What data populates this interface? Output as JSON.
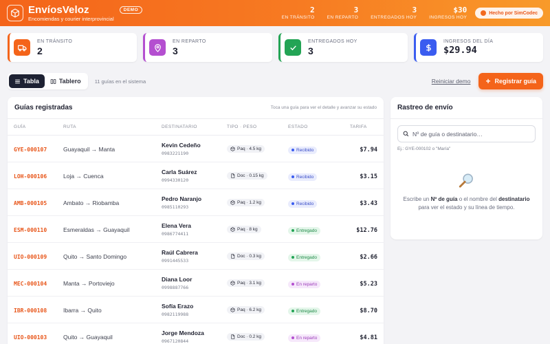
{
  "header": {
    "brand": "EnvíosVeloz",
    "subtitle": "Encomiendas y courier interprovincial",
    "badge": "DEMO",
    "stats": [
      {
        "value": "2",
        "label": "EN TRÁNSITO"
      },
      {
        "value": "3",
        "label": "EN REPARTO"
      },
      {
        "value": "3",
        "label": "ENTREGADOS HOY"
      },
      {
        "value": "$30",
        "label": "INGRESOS HOY"
      }
    ],
    "made_by": "Hecho por SimCodec"
  },
  "cards": [
    {
      "label": "EN TRÁNSITO",
      "value": "2",
      "color": "#f4641a",
      "icon": "truck-icon"
    },
    {
      "label": "EN REPARTO",
      "value": "3",
      "color": "#b44fd0",
      "icon": "map-pin-icon"
    },
    {
      "label": "ENTREGADOS HOY",
      "value": "3",
      "color": "#23a455",
      "icon": "check-icon"
    },
    {
      "label": "INGRESOS DEL DÍA",
      "value": "$29.94",
      "color": "#3a5cf0",
      "icon": "dollar-icon"
    }
  ],
  "toolbar": {
    "view_table": "Tabla",
    "view_board": "Tablero",
    "count_text": "11 guías en el sistema",
    "reset": "Reiniciar demo",
    "register": "Registrar guía"
  },
  "table": {
    "title": "Guías registradas",
    "hint": "Toca una guía para ver el detalle y avanzar su estado",
    "columns": [
      "GUÍA",
      "RUTA",
      "DESTINATARIO",
      "TIPO · PESO",
      "ESTADO",
      "TARIFA"
    ],
    "rows": [
      {
        "id": "GYE-000107",
        "route": "Guayaquil → Manta",
        "name": "Kevin Cedeño",
        "phone": "0983221190",
        "type": "Paq · 4.5 kg",
        "status": "Recibido",
        "fee": "$7.94"
      },
      {
        "id": "LOH-000106",
        "route": "Loja → Cuenca",
        "name": "Carla Suárez",
        "phone": "0994330120",
        "type": "Doc · 0.15 kg",
        "status": "Recibido",
        "fee": "$3.15"
      },
      {
        "id": "AMB-000105",
        "route": "Ambato → Riobamba",
        "name": "Pedro Naranjo",
        "phone": "0985110293",
        "type": "Paq · 1.2 kg",
        "status": "Recibido",
        "fee": "$3.43"
      },
      {
        "id": "ESM-000110",
        "route": "Esmeraldas → Guayaquil",
        "name": "Elena Vera",
        "phone": "0986774411",
        "type": "Paq · 8 kg",
        "status": "Entregado",
        "fee": "$12.76"
      },
      {
        "id": "UIO-000109",
        "route": "Quito → Santo Domingo",
        "name": "Raúl Cabrera",
        "phone": "0991445533",
        "type": "Doc · 0.3 kg",
        "status": "Entregado",
        "fee": "$2.66"
      },
      {
        "id": "MEC-000104",
        "route": "Manta → Portoviejo",
        "name": "Diana Loor",
        "phone": "0998887766",
        "type": "Paq · 3.1 kg",
        "status": "En reparto",
        "fee": "$5.23"
      },
      {
        "id": "IBR-000108",
        "route": "Ibarra → Quito",
        "name": "Sofía Erazo",
        "phone": "0982119988",
        "type": "Paq · 6.2 kg",
        "status": "Entregado",
        "fee": "$8.70"
      },
      {
        "id": "UIO-000103",
        "route": "Quito → Guayaquil",
        "name": "Jorge Mendoza",
        "phone": "0967120844",
        "type": "Doc · 0.2 kg",
        "status": "En reparto",
        "fee": "$4.81"
      }
    ]
  },
  "status_colors": {
    "Recibido": {
      "bg": "#e9ecfd",
      "fg": "#3a4ec8",
      "dot": "#3a5cf0"
    },
    "Entregado": {
      "bg": "#e4f6ea",
      "fg": "#1e8a47",
      "dot": "#23a455"
    },
    "En reparto": {
      "bg": "#f6e8fb",
      "fg": "#9a3ab8",
      "dot": "#b44fd0"
    }
  },
  "tracking": {
    "title": "Rastreo de envío",
    "placeholder": "Nº de guía o destinatario…",
    "example": "Ej.: GYE-000102 o \"María\"",
    "msg_1": "Escribe un ",
    "msg_b1": "Nº de guía",
    "msg_2": " o el nombre del ",
    "msg_b2": "destinatario",
    "msg_3": " para ver el estado y su línea de tiempo."
  }
}
